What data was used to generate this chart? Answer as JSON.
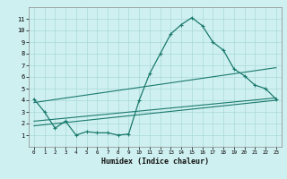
{
  "title": "",
  "xlabel": "Humidex (Indice chaleur)",
  "ylabel": "",
  "background_color": "#cff0f0",
  "grid_color": "#aad8d8",
  "line_color": "#1a7a6e",
  "xlim": [
    -0.5,
    23.5
  ],
  "ylim": [
    0,
    12
  ],
  "xticks": [
    0,
    1,
    2,
    3,
    4,
    5,
    6,
    7,
    8,
    9,
    10,
    11,
    12,
    13,
    14,
    15,
    16,
    17,
    18,
    19,
    20,
    21,
    22,
    23
  ],
  "yticks": [
    1,
    2,
    3,
    4,
    5,
    6,
    7,
    8,
    9,
    10,
    11
  ],
  "curve_x": [
    0,
    1,
    2,
    3,
    4,
    5,
    6,
    7,
    8,
    9,
    10,
    11,
    12,
    13,
    14,
    15,
    16,
    17,
    18,
    19,
    20,
    21,
    22,
    23
  ],
  "curve_y": [
    4.1,
    3.0,
    1.6,
    2.2,
    1.0,
    1.3,
    1.2,
    1.2,
    1.0,
    1.1,
    4.0,
    6.3,
    8.0,
    9.7,
    10.5,
    11.1,
    10.4,
    9.0,
    8.3,
    6.7,
    6.1,
    5.3,
    5.0,
    4.1
  ],
  "line1_x": [
    0,
    23
  ],
  "line1_y": [
    3.8,
    6.8
  ],
  "line2_x": [
    0,
    23
  ],
  "line2_y": [
    2.2,
    4.2
  ],
  "line3_x": [
    0,
    23
  ],
  "line3_y": [
    1.8,
    4.0
  ]
}
